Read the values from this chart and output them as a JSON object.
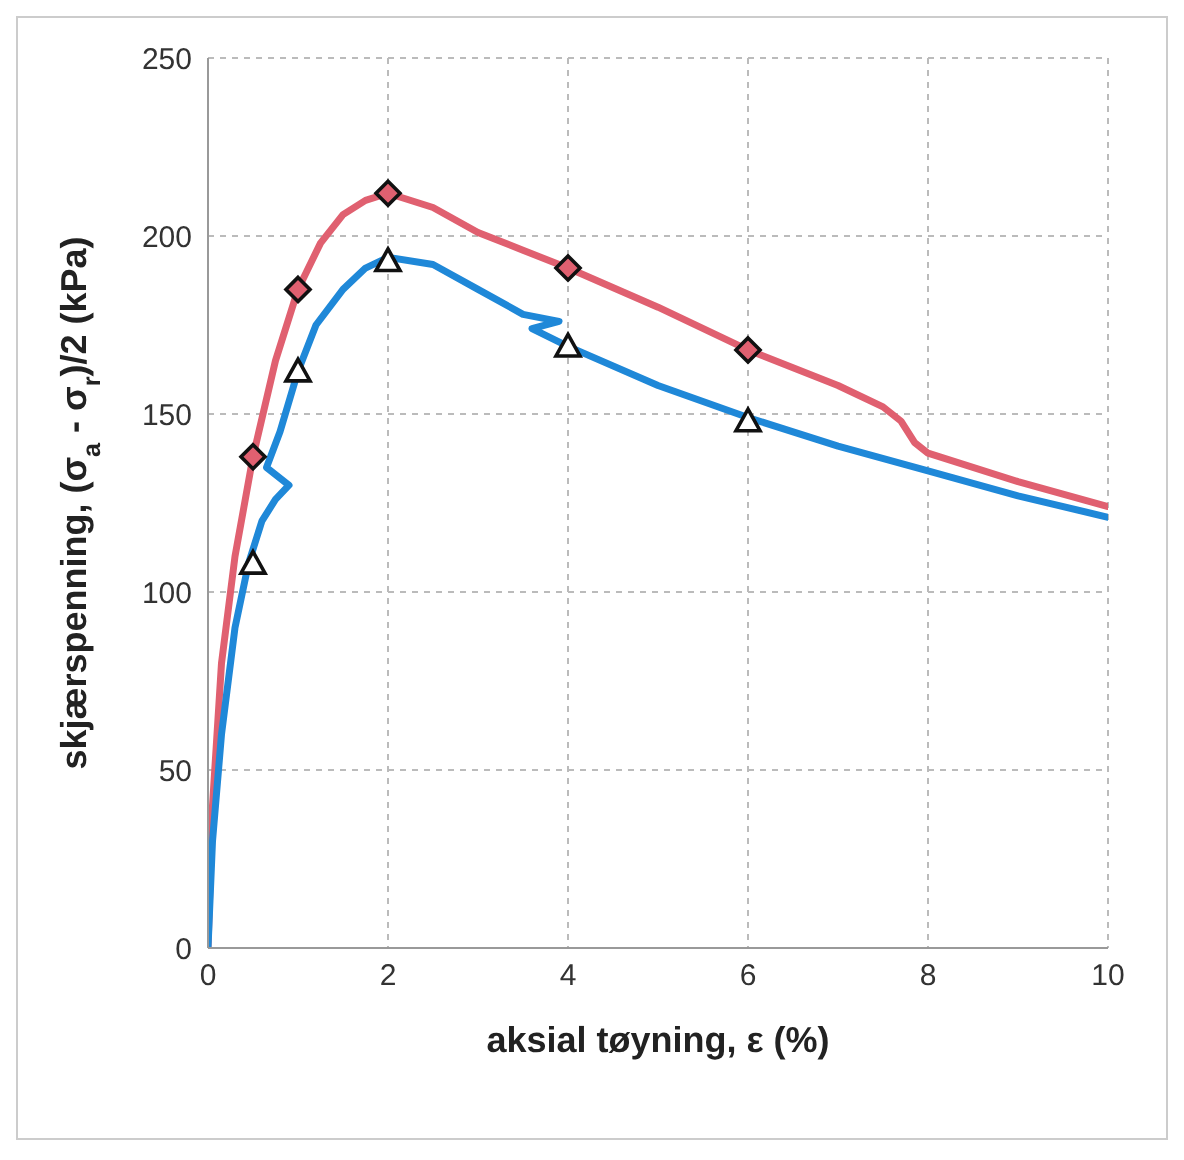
{
  "chart_data": {
    "type": "line",
    "xlabel": "aksial tøyning, ε (%)",
    "ylabel": "skjærspenning, (σ$_{a}$ - σ$_{r}$)/2 (kPa)",
    "xlim": [
      0,
      10
    ],
    "xticks": [
      0,
      2,
      4,
      6,
      8,
      10
    ],
    "ylim": [
      0,
      250
    ],
    "yticks": [
      0,
      50,
      100,
      150,
      200,
      250
    ],
    "grid": true,
    "line_style": "solid",
    "series": [
      {
        "color": "#e06070",
        "marker": "none",
        "x": [
          0,
          0.05,
          0.15,
          0.3,
          0.5,
          0.75,
          1,
          1.25,
          1.5,
          1.75,
          2,
          2.5,
          3,
          3.5,
          4,
          5,
          6,
          7,
          7.5,
          7.7,
          7.85,
          8,
          9,
          10
        ],
        "values": [
          0,
          40,
          80,
          110,
          138,
          165,
          185,
          198,
          206,
          210,
          212,
          208,
          201,
          196,
          191,
          180,
          168,
          158,
          152,
          148,
          142,
          139,
          131,
          124
        ]
      },
      {
        "color": "#1f88d8",
        "marker": "none",
        "x": [
          0,
          0.05,
          0.15,
          0.3,
          0.45,
          0.6,
          0.75,
          0.9,
          0.65,
          0.8,
          1,
          1.2,
          1.5,
          1.75,
          2,
          2.5,
          3,
          3.5,
          3.9,
          3.6,
          4,
          5,
          6,
          7,
          8,
          9,
          10
        ],
        "values": [
          0,
          30,
          60,
          90,
          108,
          120,
          126,
          130,
          135,
          145,
          162,
          175,
          185,
          191,
          194,
          192,
          185,
          178,
          176,
          174,
          169,
          158,
          149,
          141,
          134,
          127,
          121
        ]
      },
      {
        "type": "scatter",
        "color": "#e06070",
        "marker": "diamond",
        "x": [
          0.5,
          1,
          2,
          4,
          6
        ],
        "values": [
          138,
          185,
          212,
          191,
          168
        ]
      },
      {
        "type": "scatter",
        "color": "#ffffff",
        "marker": "triangle",
        "x": [
          0.5,
          1,
          2,
          4,
          6
        ],
        "values": [
          108,
          162,
          193,
          169,
          148
        ]
      }
    ]
  }
}
